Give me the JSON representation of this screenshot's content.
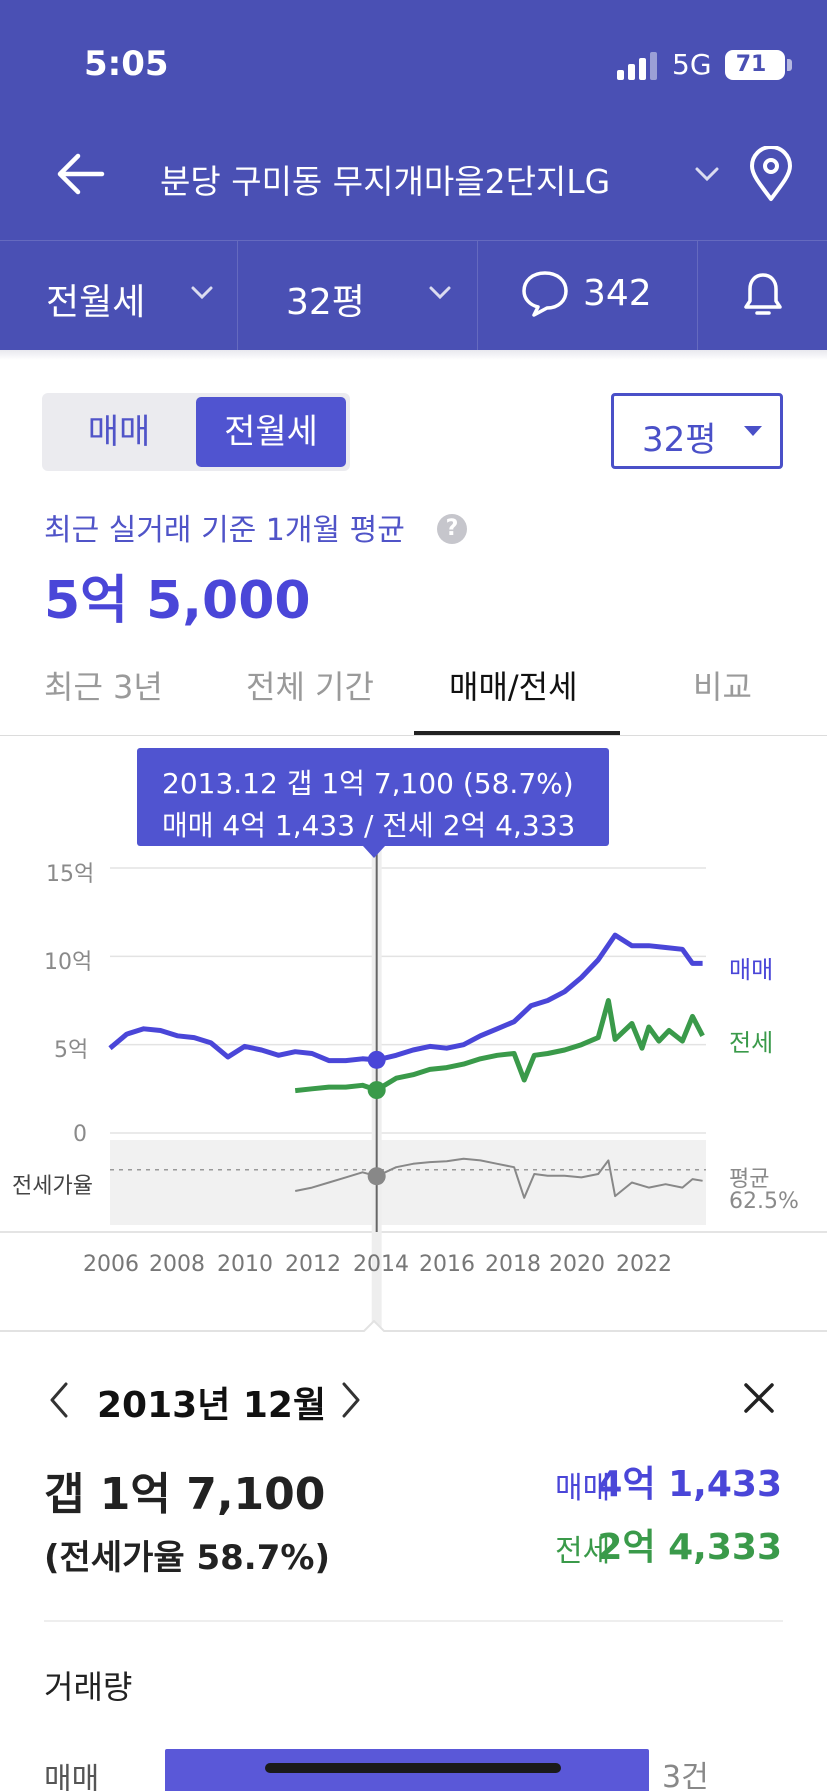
{
  "status_bar": {
    "time": "5:05",
    "network": "5G",
    "battery": "71"
  },
  "header": {
    "title": "분당 구미동 무지개마을2단지LG"
  },
  "tabbar": {
    "type": "전월세",
    "size": "32평",
    "comments": "342"
  },
  "segment": {
    "options": [
      "매매",
      "전월세"
    ],
    "selected": "전월세"
  },
  "size_select": {
    "value": "32평"
  },
  "average": {
    "label": "최근 실거래 기준 1개월 평균",
    "value": "5억 5,000"
  },
  "range_tabs": {
    "items": [
      "최근 3년",
      "전체 기간",
      "매매/전세",
      "비교"
    ],
    "active": "매매/전세"
  },
  "tooltip": {
    "line1": "2013.12  갭 1억 7,100 (58.7%)",
    "line2": "매매 4억 1,433 / 전세 2억 4,333"
  },
  "chart_data": {
    "type": "line",
    "y_axis_labels": [
      "15억",
      "10억",
      "5억",
      "0"
    ],
    "ylim": [
      0,
      15
    ],
    "x_ticks": [
      "2006",
      "2008",
      "2010",
      "2012",
      "2014",
      "2016",
      "2018",
      "2020",
      "2022"
    ],
    "series": [
      {
        "name": "매매",
        "color": "#4a46d8",
        "points": [
          [
            2006.0,
            4.8
          ],
          [
            2006.5,
            5.6
          ],
          [
            2007.0,
            5.9
          ],
          [
            2007.5,
            5.8
          ],
          [
            2008.0,
            5.5
          ],
          [
            2008.5,
            5.4
          ],
          [
            2009.0,
            5.1
          ],
          [
            2009.5,
            4.3
          ],
          [
            2010.0,
            4.9
          ],
          [
            2010.5,
            4.7
          ],
          [
            2011.0,
            4.4
          ],
          [
            2011.5,
            4.6
          ],
          [
            2012.0,
            4.5
          ],
          [
            2012.5,
            4.1
          ],
          [
            2013.0,
            4.1
          ],
          [
            2013.5,
            4.2
          ],
          [
            2013.92,
            4.14
          ],
          [
            2014.5,
            4.4
          ],
          [
            2015.0,
            4.7
          ],
          [
            2015.5,
            4.9
          ],
          [
            2016.0,
            4.8
          ],
          [
            2016.5,
            5.0
          ],
          [
            2017.0,
            5.5
          ],
          [
            2017.5,
            5.9
          ],
          [
            2018.0,
            6.3
          ],
          [
            2018.5,
            7.2
          ],
          [
            2019.0,
            7.5
          ],
          [
            2019.5,
            8.0
          ],
          [
            2020.0,
            8.8
          ],
          [
            2020.5,
            9.8
          ],
          [
            2021.0,
            11.2
          ],
          [
            2021.5,
            10.6
          ],
          [
            2022.0,
            10.6
          ],
          [
            2022.5,
            10.5
          ],
          [
            2023.0,
            10.4
          ],
          [
            2023.3,
            9.6
          ],
          [
            2023.6,
            9.6
          ]
        ]
      },
      {
        "name": "전세",
        "color": "#3a9a4a",
        "points": [
          [
            2011.5,
            2.4
          ],
          [
            2012.0,
            2.5
          ],
          [
            2012.5,
            2.6
          ],
          [
            2013.0,
            2.6
          ],
          [
            2013.5,
            2.7
          ],
          [
            2013.92,
            2.43
          ],
          [
            2014.5,
            3.1
          ],
          [
            2015.0,
            3.3
          ],
          [
            2015.5,
            3.6
          ],
          [
            2016.0,
            3.7
          ],
          [
            2016.5,
            3.9
          ],
          [
            2017.0,
            4.2
          ],
          [
            2017.5,
            4.4
          ],
          [
            2018.0,
            4.5
          ],
          [
            2018.3,
            3.0
          ],
          [
            2018.6,
            4.4
          ],
          [
            2019.0,
            4.5
          ],
          [
            2019.5,
            4.7
          ],
          [
            2020.0,
            5.0
          ],
          [
            2020.5,
            5.4
          ],
          [
            2020.8,
            7.5
          ],
          [
            2021.0,
            5.3
          ],
          [
            2021.5,
            6.2
          ],
          [
            2021.8,
            4.8
          ],
          [
            2022.0,
            6.0
          ],
          [
            2022.3,
            5.2
          ],
          [
            2022.6,
            5.8
          ],
          [
            2023.0,
            5.2
          ],
          [
            2023.3,
            6.6
          ],
          [
            2023.6,
            5.5
          ]
        ]
      },
      {
        "name": "전세가율",
        "color": "#888888",
        "points": [
          [
            2011.5,
            50.0
          ],
          [
            2012.0,
            52.0
          ],
          [
            2012.5,
            55.0
          ],
          [
            2013.0,
            58.0
          ],
          [
            2013.5,
            61.0
          ],
          [
            2013.92,
            58.7
          ],
          [
            2014.5,
            64.0
          ],
          [
            2015.0,
            66.0
          ],
          [
            2015.5,
            67.0
          ],
          [
            2016.0,
            67.5
          ],
          [
            2016.5,
            69.0
          ],
          [
            2017.0,
            68.0
          ],
          [
            2017.5,
            66.0
          ],
          [
            2018.0,
            64.0
          ],
          [
            2018.3,
            46.0
          ],
          [
            2018.6,
            60.0
          ],
          [
            2019.0,
            59.0
          ],
          [
            2019.5,
            59.0
          ],
          [
            2020.0,
            58.0
          ],
          [
            2020.5,
            60.0
          ],
          [
            2020.8,
            68.0
          ],
          [
            2021.0,
            47.0
          ],
          [
            2021.5,
            55.0
          ],
          [
            2022.0,
            52.0
          ],
          [
            2022.5,
            54.0
          ],
          [
            2023.0,
            52.0
          ],
          [
            2023.3,
            57.0
          ],
          [
            2023.6,
            56.0
          ]
        ]
      }
    ],
    "ratio_label": "전세가율",
    "ratio_average_label": "평균",
    "ratio_average": "62.5%",
    "selected_x": 2013.92,
    "legend_placement": "right"
  },
  "detail": {
    "month": "2013년 12월",
    "gap": "갭 1억 7,100",
    "ratio": "(전세가율 58.7%)",
    "maemae_label": "매매",
    "maemae_value": "4억 1,433",
    "jeonse_label": "전세",
    "jeonse_value": "2억 4,333"
  },
  "volume": {
    "title": "거래량",
    "row_label": "매매",
    "count": "3건"
  }
}
